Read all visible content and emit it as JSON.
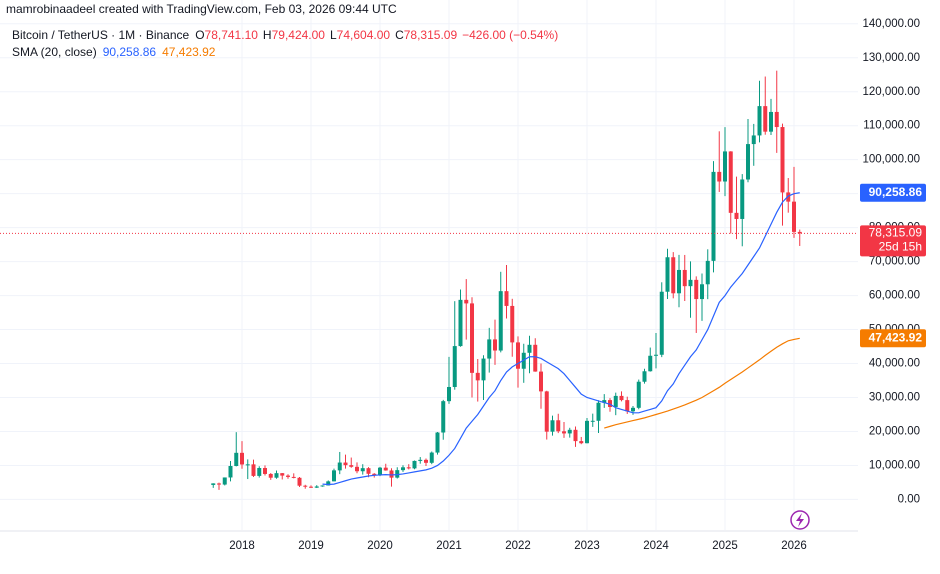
{
  "chart_data": {
    "type": "candlestick",
    "watermark": "mamrobinaadeel created with TradingView.com, Feb 03, 2026 09:44 UTC",
    "indicator": "SMA (20, close)",
    "ohlc_legend": {
      "labels": [
        "O",
        "H",
        "L",
        "C"
      ],
      "values": [
        "78,741.10",
        "79,424.00",
        "74,604.00",
        "78,315.09"
      ],
      "change": "−426.00 (−0.54%)"
    },
    "last_price_label": "78,315.09",
    "countdown": "25d 15h",
    "up_color": "#089981",
    "down_color": "#f23645",
    "grid": true,
    "ylim": [
      -9000,
      147000
    ],
    "yticks": [
      {
        "value": 0,
        "label": "0.00"
      },
      {
        "value": 10000,
        "label": "10,000.00"
      },
      {
        "value": 20000,
        "label": "20,000.00"
      },
      {
        "value": 30000,
        "label": "30,000.00"
      },
      {
        "value": 40000,
        "label": "40,000.00"
      },
      {
        "value": 50000,
        "label": "50,000.00"
      },
      {
        "value": 60000,
        "label": "60,000.00"
      },
      {
        "value": 70000,
        "label": "70,000.00"
      },
      {
        "value": 80000,
        "label": "80,000.00"
      },
      {
        "value": 90000,
        "label": "90,000.00"
      },
      {
        "value": 100000,
        "label": "100,000.00"
      },
      {
        "value": 110000,
        "label": "110,000.00"
      },
      {
        "value": 120000,
        "label": "120,000.00"
      },
      {
        "value": 130000,
        "label": "130,000.00"
      },
      {
        "value": 140000,
        "label": "140,000.00"
      }
    ],
    "categories": [
      null,
      null,
      null,
      null,
      null,
      "2018",
      null,
      null,
      null,
      null,
      null,
      null,
      null,
      null,
      null,
      null,
      null,
      "2019",
      null,
      null,
      null,
      null,
      null,
      null,
      null,
      null,
      null,
      null,
      null,
      "2020",
      null,
      null,
      null,
      null,
      null,
      null,
      null,
      null,
      null,
      null,
      null,
      "2021",
      null,
      null,
      null,
      null,
      null,
      null,
      null,
      null,
      null,
      null,
      null,
      "2022",
      null,
      null,
      null,
      null,
      null,
      null,
      null,
      null,
      null,
      null,
      null,
      "2023",
      null,
      null,
      null,
      null,
      null,
      null,
      null,
      null,
      null,
      null,
      null,
      "2024",
      null,
      null,
      null,
      null,
      null,
      null,
      null,
      null,
      null,
      null,
      null,
      "2025",
      null,
      null,
      null,
      null,
      null,
      null,
      null,
      null,
      null,
      null,
      null,
      "2026",
      null
    ],
    "series": [
      {
        "name": "Bitcoin / TetherUS · 1M · Binance",
        "open": [
          4261,
          4690,
          4378,
          6463,
          9838,
          13716,
          10285,
          10326,
          6923,
          9246,
          7494,
          6391,
          7735,
          7011,
          6626,
          6370,
          4041,
          3742,
          3458,
          3813,
          4106,
          5321,
          8555,
          10855,
          10085,
          9600,
          8293,
          9199,
          7546,
          7193,
          9350,
          8523,
          6410,
          8620,
          9448,
          9138,
          11335,
          11649,
          10776,
          13791,
          19695,
          28923,
          33092,
          45135,
          58740,
          57697,
          37253,
          35045,
          41461,
          47100,
          43820,
          61300,
          56951,
          46216,
          38466,
          43160,
          45510,
          37630,
          31801,
          19942,
          23297,
          20049,
          19423,
          20490,
          17165,
          16541,
          23125,
          23142,
          28465,
          29233,
          27210,
          30472,
          29232,
          25941,
          26962,
          34640,
          37724,
          42283,
          42580,
          61131,
          71280,
          60672,
          67540,
          62772,
          64628,
          58974,
          63328,
          70215,
          96407,
          93576,
          102430,
          84350,
          82550,
          94172,
          104592,
          107136,
          115764,
          108246,
          114049,
          109608,
          90360,
          87648,
          78741.1
        ],
        "high": [
          4745,
          4939,
          6470,
          11300,
          19798,
          17176,
          11786,
          11700,
          9759,
          10020,
          7760,
          8507,
          7760,
          7410,
          7680,
          6615,
          4312,
          4143,
          4198,
          4123,
          5600,
          9074,
          13970,
          13200,
          12325,
          10905,
          10370,
          9510,
          7750,
          9578,
          10500,
          9188,
          9468,
          10067,
          10380,
          11444,
          12468,
          12050,
          14100,
          19863,
          29300,
          41950,
          58352,
          61788,
          64854,
          59500,
          41330,
          42448,
          50500,
          52920,
          67000,
          69000,
          59053,
          47990,
          45821,
          48189,
          47444,
          40023,
          31982,
          24668,
          25211,
          22799,
          21085,
          21480,
          18387,
          23960,
          25250,
          29185,
          31000,
          29820,
          31431,
          31804,
          30244,
          27489,
          35280,
          38450,
          44700,
          48969,
          63913,
          73777,
          72797,
          71979,
          71958,
          70079,
          65660,
          66499,
          73620,
          99588,
          108353,
          109588,
          102500,
          95000,
          95758,
          111980,
          110530,
          123218,
          124474,
          117900,
          126200,
          110600,
          94600,
          97900,
          79424
        ],
        "low": [
          3400,
          2817,
          4110,
          5325,
          9722,
          9035,
          6000,
          6600,
          6430,
          7032,
          5755,
          6070,
          5880,
          6100,
          6200,
          3652,
          3156,
          3349,
          3374,
          3733,
          4086,
          5320,
          7440,
          9070,
          9320,
          7710,
          7300,
          6515,
          6435,
          6871,
          8450,
          3782,
          6150,
          8117,
          8833,
          8893,
          10518,
          9825,
          10375,
          13195,
          17572,
          28130,
          32296,
          44950,
          47044,
          30000,
          28805,
          29278,
          37332,
          39600,
          43283,
          53256,
          42000,
          32917,
          34322,
          37155,
          37578,
          26700,
          17622,
          18781,
          19520,
          18125,
          18190,
          15476,
          16256,
          16499,
          21351,
          19549,
          26942,
          25811,
          24800,
          28861,
          25166,
          24901,
          26538,
          34097,
          37615,
          38555,
          41885,
          59005,
          59191,
          56552,
          58402,
          53485,
          49000,
          52550,
          58946,
          66835,
          90500,
          89256,
          78258,
          76606,
          74508,
          93346,
          98200,
          105100,
          107350,
          107255,
          102000,
          80600,
          84400,
          77000,
          74604
        ],
        "close": [
          4724,
          4378,
          6463,
          9838,
          13716,
          10285,
          10326,
          6923,
          9246,
          7494,
          6391,
          7730,
          7011,
          6626,
          6371,
          4041,
          3742,
          3458,
          3813,
          4106,
          5321,
          8555,
          10855,
          10085,
          9600,
          8293,
          9199,
          7546,
          7193,
          9350,
          8523,
          6410,
          8620,
          9448,
          9138,
          11335,
          11649,
          10776,
          13791,
          19695,
          28923,
          33092,
          45135,
          58740,
          57694,
          37253,
          35045,
          41461,
          47100,
          43824,
          61299,
          56950,
          46217,
          38466,
          43160,
          45510,
          37630,
          31801,
          19942,
          23293,
          20050,
          19423,
          20490,
          17164,
          16542,
          23125,
          23142,
          28465,
          29233,
          27210,
          30472,
          29232,
          25941,
          26963,
          34639,
          37723,
          42283,
          42580,
          61130,
          71280,
          60672,
          67540,
          62772,
          64628,
          58974,
          63328,
          70215,
          96408,
          93576,
          102429,
          84350,
          82550,
          94172,
          104591,
          107135,
          115764,
          108246,
          114049,
          109608,
          90360,
          87648,
          78741.1,
          78315.09
        ]
      },
      {
        "color": "#2962ff",
        "value_label": "90,258.86",
        "box_color": "#2962ff",
        "values": [
          null,
          null,
          null,
          null,
          null,
          null,
          null,
          null,
          null,
          null,
          null,
          null,
          null,
          null,
          null,
          null,
          null,
          null,
          null,
          4500,
          4400,
          4500,
          5000,
          5500,
          6000,
          6300,
          6600,
          6900,
          7100,
          7200,
          7300,
          7200,
          7300,
          7500,
          7800,
          8100,
          8400,
          8700,
          9200,
          10000,
          11300,
          13000,
          15000,
          18000,
          21000,
          23000,
          25000,
          27500,
          30000,
          32000,
          35000,
          37500,
          39000,
          40000,
          41000,
          42000,
          42000,
          41500,
          40500,
          39500,
          38500,
          37000,
          35000,
          33000,
          31000,
          30000,
          29500,
          29000,
          28500,
          28000,
          27000,
          26500,
          26000,
          25500,
          25500,
          26000,
          26500,
          27000,
          29000,
          32000,
          34000,
          37000,
          39500,
          42000,
          44000,
          47000,
          50000,
          54000,
          58000,
          60000,
          62500,
          64500,
          66500,
          69000,
          71500,
          74000,
          77500,
          81000,
          84500,
          87500,
          89300,
          90000,
          90258.86
        ]
      },
      {
        "color": "#f57c00",
        "value_label": "47,423.92",
        "box_color": "#f57c00",
        "values": [
          null,
          null,
          null,
          null,
          null,
          null,
          null,
          null,
          null,
          null,
          null,
          null,
          null,
          null,
          null,
          null,
          null,
          null,
          null,
          null,
          null,
          null,
          null,
          null,
          null,
          null,
          null,
          null,
          null,
          null,
          null,
          null,
          null,
          null,
          null,
          null,
          null,
          null,
          null,
          null,
          null,
          null,
          null,
          null,
          null,
          null,
          null,
          null,
          null,
          null,
          null,
          null,
          null,
          null,
          null,
          null,
          null,
          null,
          null,
          null,
          null,
          null,
          null,
          null,
          null,
          null,
          null,
          null,
          21000,
          21500,
          22000,
          22400,
          22800,
          23200,
          23600,
          24000,
          24500,
          25000,
          25500,
          26000,
          26600,
          27200,
          27800,
          28500,
          29200,
          30000,
          31000,
          32000,
          33000,
          34200,
          35300,
          36400,
          37500,
          38700,
          39900,
          41100,
          42400,
          43600,
          44800,
          45800,
          46700,
          47100,
          47423.92
        ]
      }
    ]
  }
}
